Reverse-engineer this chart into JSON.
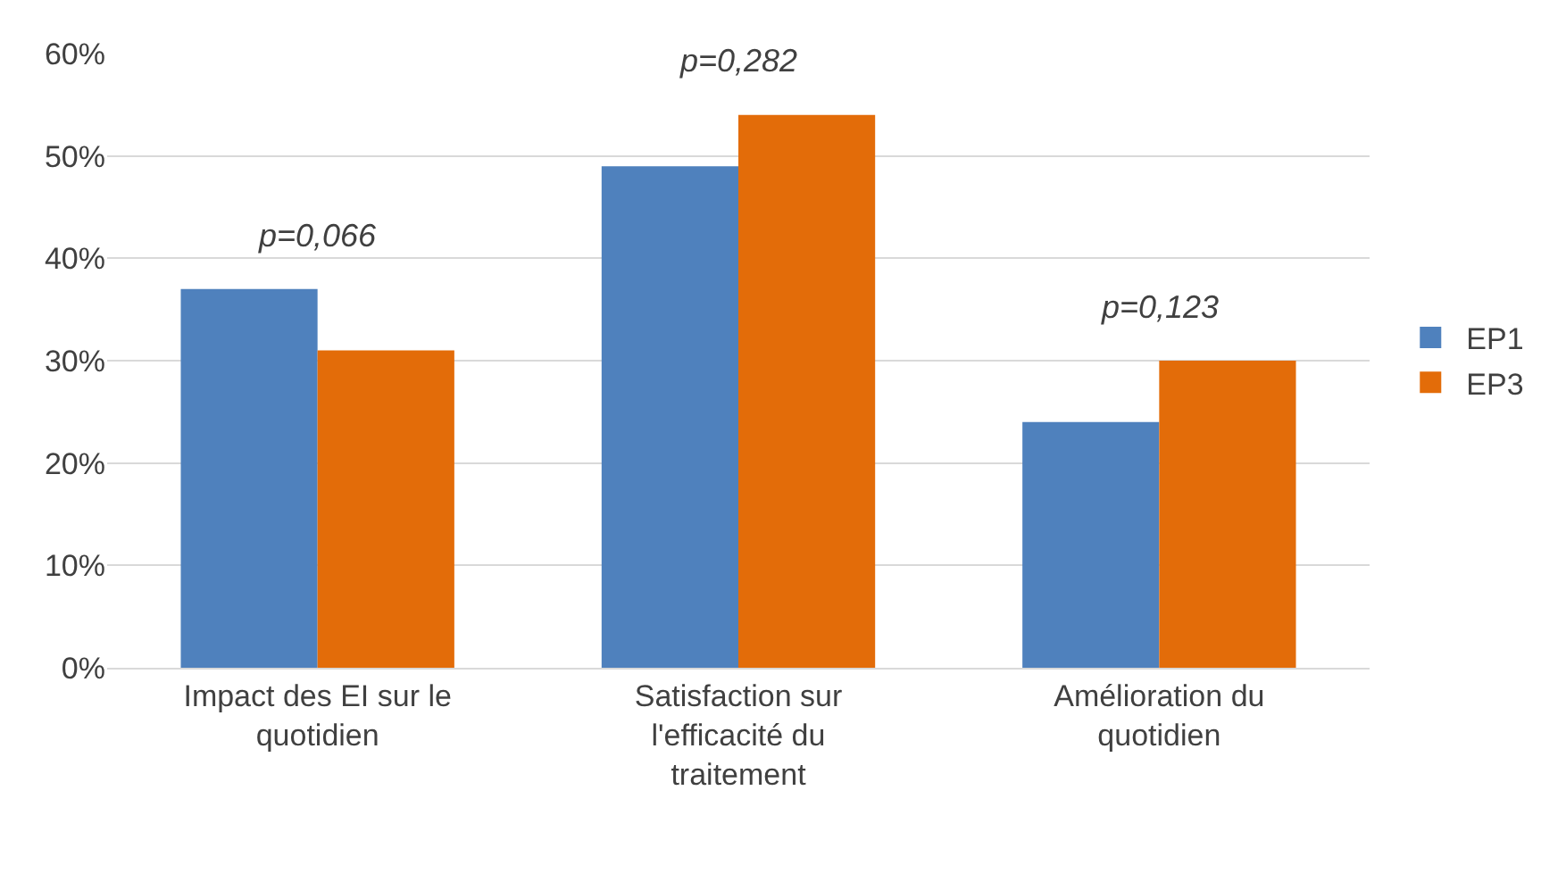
{
  "chart_data": {
    "type": "bar",
    "categories": [
      "Impact des EI sur le quotidien",
      "Satisfaction sur l'efficacité du traitement",
      "Amélioration du quotidien"
    ],
    "series": [
      {
        "name": "EP1",
        "color": "#4f81bd",
        "values": [
          37,
          49,
          24
        ]
      },
      {
        "name": "EP3",
        "color": "#e36c09",
        "values": [
          31,
          54,
          30
        ]
      }
    ],
    "ylim": [
      0,
      60
    ],
    "yticks": [
      {
        "value": 0,
        "label": "0%"
      },
      {
        "value": 10,
        "label": "10%"
      },
      {
        "value": 20,
        "label": "20%"
      },
      {
        "value": 30,
        "label": "30%"
      },
      {
        "value": 40,
        "label": "40%"
      },
      {
        "value": 50,
        "label": "50%"
      },
      {
        "value": 60,
        "label": "60%"
      }
    ],
    "annotations": [
      "p=0,066",
      "p=0,282",
      "p=0,123"
    ],
    "grid": "y",
    "legend": "right"
  }
}
